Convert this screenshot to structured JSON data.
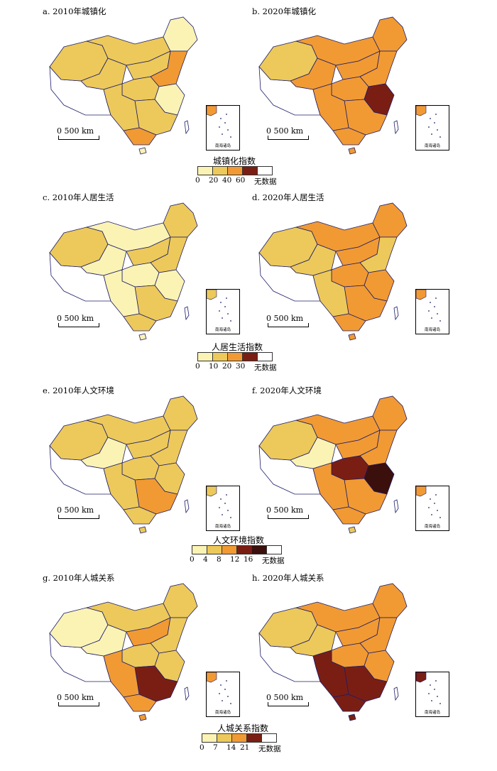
{
  "colors": {
    "c1": "#fbf3b4",
    "c2": "#ecc95a",
    "c3": "#f19a33",
    "c4": "#7a1e14",
    "c5": "#3a0f0c",
    "nodata": "#ffffff",
    "border": "#1c1c6a"
  },
  "panels": [
    {
      "title": "a. 2010年城镇化",
      "scale": "0 500 km",
      "inset_label": "南海诸岛",
      "levels": [
        2,
        2,
        2,
        2,
        1,
        3,
        2,
        1,
        2,
        2,
        3,
        1
      ]
    },
    {
      "title": "b. 2020年城镇化",
      "scale": "0 500 km",
      "inset_label": "南海诸岛",
      "levels": [
        2,
        3,
        3,
        3,
        3,
        3,
        3,
        4,
        3,
        3,
        3,
        3
      ]
    },
    {
      "title": "c. 2010年人居生活",
      "scale": "0 500 km",
      "inset_label": "南海诸岛",
      "levels": [
        2,
        1,
        1,
        2,
        2,
        2,
        1,
        1,
        2,
        1,
        2,
        1
      ]
    },
    {
      "title": "d. 2020年人居生活",
      "scale": "0 500 km",
      "inset_label": "南海诸岛",
      "levels": [
        2,
        3,
        2,
        3,
        3,
        2,
        3,
        3,
        3,
        2,
        3,
        3
      ]
    },
    {
      "title": "e. 2010年人文环境",
      "scale": "0 500 km",
      "inset_label": "南海诸岛",
      "levels": [
        2,
        2,
        1,
        2,
        2,
        2,
        2,
        2,
        3,
        2,
        2,
        2
      ]
    },
    {
      "title": "f. 2020年人文环境",
      "scale": "0 500 km",
      "inset_label": "南海诸岛",
      "levels": [
        2,
        3,
        1,
        3,
        3,
        3,
        4,
        5,
        3,
        3,
        3,
        2
      ]
    },
    {
      "title": "g. 2010年人城关系",
      "scale": "0 500 km",
      "inset_label": "南海诸岛",
      "levels": [
        1,
        2,
        1,
        3,
        2,
        2,
        2,
        2,
        4,
        3,
        3,
        3
      ]
    },
    {
      "title": "h. 2020年人城关系",
      "scale": "0 500 km",
      "inset_label": "南海诸岛",
      "levels": [
        2,
        3,
        2,
        3,
        3,
        3,
        3,
        3,
        4,
        4,
        4,
        4
      ]
    }
  ],
  "legends": [
    {
      "title": "城镇化指数",
      "ticks": [
        "0",
        "20",
        "40",
        "60"
      ],
      "nodata_label": "无数据",
      "classes": [
        "c1",
        "c2",
        "c3",
        "c4"
      ]
    },
    {
      "title": "人居生活指数",
      "ticks": [
        "0",
        "10",
        "20",
        "30"
      ],
      "nodata_label": "无数据",
      "classes": [
        "c1",
        "c2",
        "c3",
        "c4"
      ]
    },
    {
      "title": "人文环境指数",
      "ticks": [
        "0",
        "4",
        "8",
        "12",
        "16"
      ],
      "nodata_label": "无数据",
      "classes": [
        "c1",
        "c2",
        "c3",
        "c4",
        "c5"
      ]
    },
    {
      "title": "人城关系指数",
      "ticks": [
        "0",
        "7",
        "14",
        "21"
      ],
      "nodata_label": "无数据",
      "classes": [
        "c1",
        "c2",
        "c3",
        "c4"
      ]
    }
  ]
}
